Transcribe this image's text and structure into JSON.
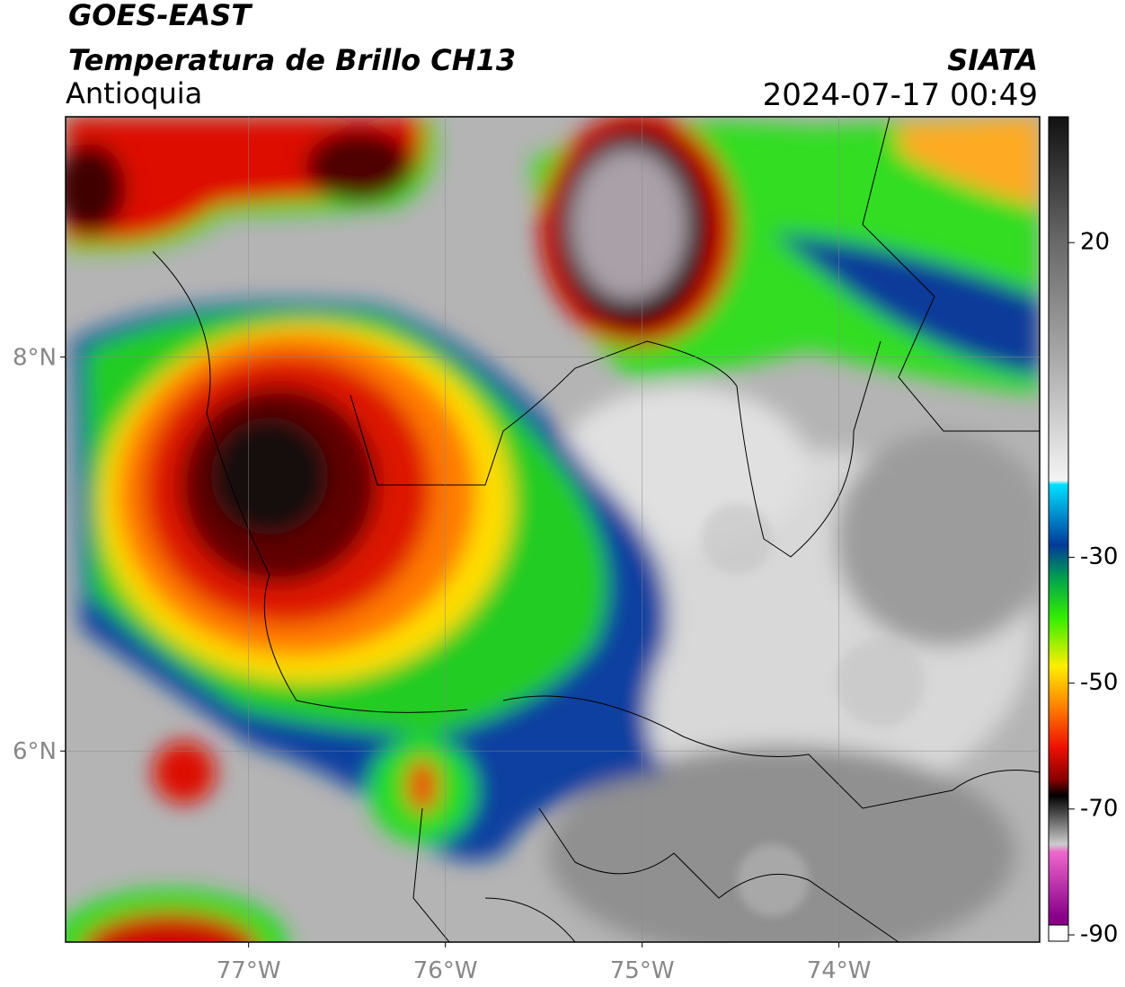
{
  "header": {
    "title": "GOES-EAST",
    "subtitle": "Temperatura de Brillo CH13",
    "region": "Antioquia",
    "source": "SIATA",
    "timestamp": "2024-07-17 00:49"
  },
  "map": {
    "xlim": [
      -77.93,
      -72.98
    ],
    "ylim": [
      5.03,
      9.22
    ],
    "xticks": [
      {
        "value": -77,
        "label": "77°W"
      },
      {
        "value": -76,
        "label": "76°W"
      },
      {
        "value": -75,
        "label": "75°W"
      },
      {
        "value": -74,
        "label": "74°W"
      }
    ],
    "yticks": [
      {
        "value": 8,
        "label": "8°N"
      },
      {
        "value": 6,
        "label": "6°N"
      }
    ]
  },
  "colorbar": {
    "lim": [
      -91,
      40
    ],
    "ticks": [
      20,
      -30,
      -50,
      -70,
      -90
    ]
  }
}
